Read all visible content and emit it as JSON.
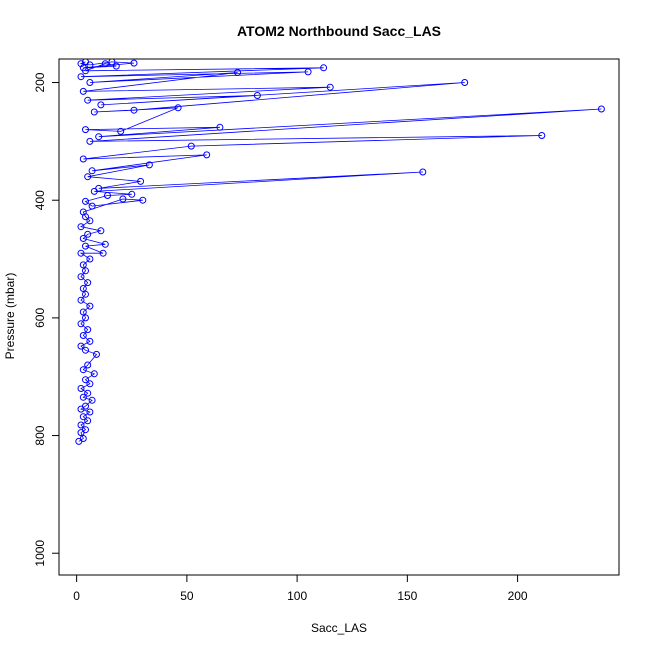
{
  "chart_data": {
    "type": "line",
    "title": "ATOM2 Northbound Sacc_LAS",
    "xlabel": "Sacc_LAS",
    "ylabel": "Pressure (mbar)",
    "xlim": [
      -8,
      246
    ],
    "ylim": [
      1037,
      160
    ],
    "y_reversed": true,
    "grid": false,
    "legend": "none",
    "marker": "open-circle",
    "series_color": "#0000ff",
    "x_ticks": [
      0,
      50,
      100,
      150,
      200
    ],
    "x_tick_labels": [
      "0",
      "50",
      "100",
      "150",
      "200"
    ],
    "y_ticks": [
      200,
      400,
      600,
      800,
      1000
    ],
    "y_tick_labels": [
      "200",
      "400",
      "600",
      "800",
      "1000"
    ],
    "series": [
      {
        "points": [
          [
            1,
            810
          ],
          [
            3,
            805
          ],
          [
            2,
            795
          ],
          [
            4,
            790
          ],
          [
            2,
            782
          ],
          [
            5,
            775
          ],
          [
            3,
            768
          ],
          [
            6,
            760
          ],
          [
            2,
            755
          ],
          [
            4,
            750
          ],
          [
            7,
            740
          ],
          [
            3,
            735
          ],
          [
            5,
            728
          ],
          [
            2,
            720
          ],
          [
            6,
            712
          ],
          [
            4,
            705
          ],
          [
            8,
            695
          ],
          [
            3,
            688
          ],
          [
            5,
            680
          ],
          [
            9,
            662
          ],
          [
            4,
            655
          ],
          [
            2,
            648
          ],
          [
            6,
            640
          ],
          [
            3,
            630
          ],
          [
            5,
            620
          ],
          [
            2,
            610
          ],
          [
            4,
            600
          ],
          [
            3,
            590
          ],
          [
            6,
            580
          ],
          [
            2,
            570
          ],
          [
            4,
            560
          ],
          [
            3,
            550
          ],
          [
            5,
            540
          ],
          [
            2,
            530
          ],
          [
            4,
            520
          ],
          [
            3,
            510
          ],
          [
            6,
            500
          ],
          [
            2,
            490
          ],
          [
            12,
            490
          ],
          [
            4,
            478
          ],
          [
            13,
            475
          ],
          [
            3,
            465
          ],
          [
            5,
            458
          ],
          [
            11,
            452
          ],
          [
            2,
            445
          ],
          [
            6,
            435
          ],
          [
            4,
            428
          ],
          [
            3,
            420
          ],
          [
            21,
            398
          ],
          [
            30,
            400
          ],
          [
            7,
            410
          ],
          [
            4,
            402
          ],
          [
            14,
            392
          ],
          [
            25,
            390
          ],
          [
            8,
            385
          ],
          [
            157,
            352
          ],
          [
            10,
            380
          ],
          [
            29,
            368
          ],
          [
            5,
            360
          ],
          [
            33,
            340
          ],
          [
            7,
            350
          ],
          [
            59,
            323
          ],
          [
            3,
            330
          ],
          [
            52,
            308
          ],
          [
            211,
            290
          ],
          [
            6,
            300
          ],
          [
            238,
            245
          ],
          [
            10,
            292
          ],
          [
            65,
            276
          ],
          [
            4,
            280
          ],
          [
            20,
            283
          ],
          [
            46,
            243
          ],
          [
            8,
            250
          ],
          [
            26,
            247
          ],
          [
            176,
            200
          ],
          [
            11,
            238
          ],
          [
            82,
            222
          ],
          [
            5,
            230
          ],
          [
            115,
            208
          ],
          [
            3,
            215
          ],
          [
            73,
            183
          ],
          [
            6,
            200
          ],
          [
            105,
            182
          ],
          [
            2,
            190
          ],
          [
            112,
            175
          ],
          [
            4,
            180
          ],
          [
            13,
            168
          ],
          [
            18,
            172
          ],
          [
            3,
            175
          ],
          [
            26,
            167
          ],
          [
            16,
            165
          ],
          [
            6,
            170
          ],
          [
            2,
            168
          ],
          [
            4,
            165
          ]
        ]
      }
    ]
  }
}
